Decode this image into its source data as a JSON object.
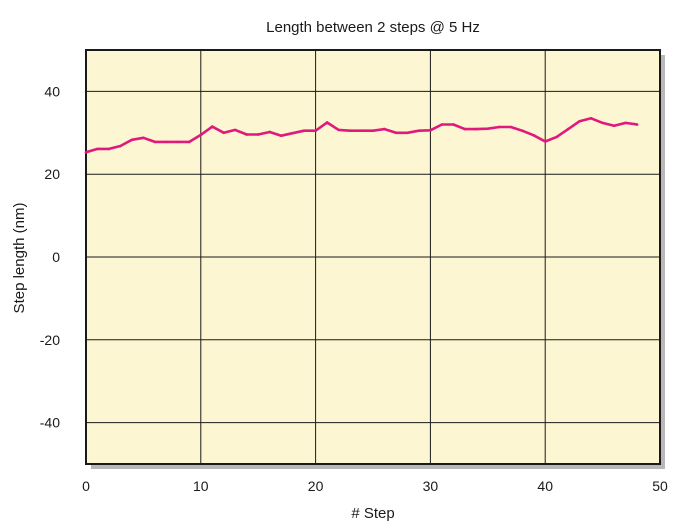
{
  "chart_data": {
    "type": "line",
    "title": "Length between 2 steps @ 5 Hz",
    "xlabel": "# Step",
    "ylabel": "Step length (nm)",
    "xlim": [
      0,
      50
    ],
    "ylim": [
      -50,
      50
    ],
    "xticks": [
      0,
      10,
      20,
      30,
      40,
      50
    ],
    "yticks": [
      -40,
      -20,
      0,
      20,
      40
    ],
    "grid": true,
    "colors": {
      "series": "#e0197d",
      "plot_background": "#fdf6d2",
      "grid": "#1a1a1a",
      "shadow": "#b8b8b8"
    },
    "series": [
      {
        "x": [
          0,
          1,
          2,
          3,
          4,
          5,
          6,
          7,
          8,
          9,
          10,
          11,
          12,
          13,
          14,
          15,
          16,
          17,
          18,
          19,
          20,
          21,
          22,
          23,
          24,
          25,
          26,
          27,
          28,
          29,
          30,
          31,
          32,
          33,
          34,
          35,
          36,
          37,
          38,
          39,
          40,
          41,
          42,
          43,
          44,
          45,
          46,
          47,
          48
        ],
        "y": [
          25.3,
          26.1,
          26.1,
          26.8,
          28.3,
          28.8,
          27.8,
          27.8,
          27.8,
          27.8,
          29.5,
          31.5,
          30.0,
          30.7,
          29.6,
          29.6,
          30.2,
          29.3,
          29.9,
          30.5,
          30.5,
          32.5,
          30.7,
          30.5,
          30.5,
          30.5,
          30.9,
          30.0,
          30.0,
          30.5,
          30.6,
          32.0,
          32.0,
          30.9,
          30.9,
          31.0,
          31.4,
          31.4,
          30.5,
          29.4,
          27.9,
          29.0,
          30.9,
          32.8,
          33.5,
          32.4,
          31.7,
          32.4,
          32.0
        ]
      }
    ]
  }
}
